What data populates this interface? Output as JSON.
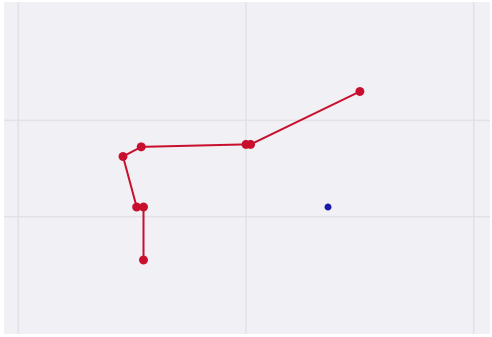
{
  "chart_data": {
    "type": "line",
    "title": "",
    "xlabel": "",
    "ylabel": "",
    "xlim": [
      0,
      10
    ],
    "ylim": [
      0,
      6
    ],
    "grid": true,
    "series": [
      {
        "color": "#c8102e",
        "style": "line-with-markers",
        "points": [
          {
            "x": 7.5,
            "y": 4.6
          },
          {
            "x": 5.1,
            "y": 3.5
          },
          {
            "x": 5.0,
            "y": 3.5
          },
          {
            "x": 2.7,
            "y": 3.45
          },
          {
            "x": 2.3,
            "y": 3.25
          },
          {
            "x": 2.6,
            "y": 2.2
          },
          {
            "x": 2.75,
            "y": 2.2
          },
          {
            "x": 2.75,
            "y": 1.1
          }
        ]
      },
      {
        "color": "#1a1aa8",
        "style": "markers-only",
        "points": [
          {
            "x": 6.8,
            "y": 2.2
          }
        ]
      }
    ]
  }
}
